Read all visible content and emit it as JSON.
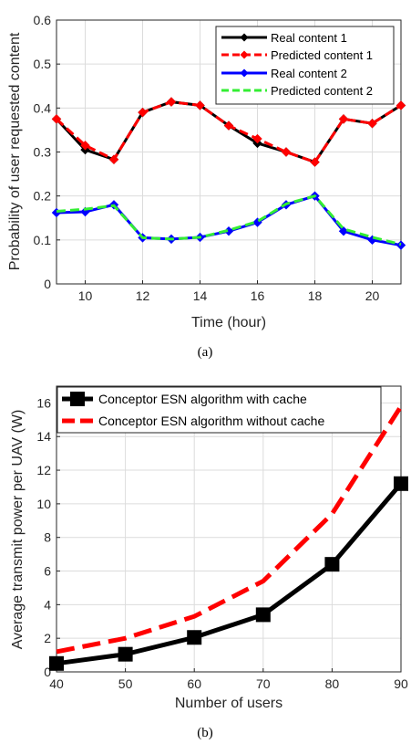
{
  "chart_data": [
    {
      "type": "line",
      "caption": "(a)",
      "xlabel": "Time (hour)",
      "ylabel": "Probability of user requested content",
      "xlim": [
        9,
        21
      ],
      "ylim": [
        0,
        0.6
      ],
      "xticks": [
        10,
        12,
        14,
        16,
        18,
        20
      ],
      "yticks": [
        0,
        0.1,
        0.2,
        0.3,
        0.4,
        0.5,
        0.6
      ],
      "ytick_labels": [
        "0",
        "0.1",
        "0.2",
        "0.3",
        "0.4",
        "0.5",
        "0.6"
      ],
      "grid": true,
      "legend_position": "top-right",
      "x": [
        9,
        10,
        11,
        12,
        13,
        14,
        15,
        16,
        17,
        18,
        19,
        20,
        21
      ],
      "series": [
        {
          "name": "Real content 1",
          "color": "#000000",
          "style": "solid",
          "marker": "diamond",
          "values": [
            0.375,
            0.305,
            0.283,
            0.39,
            0.414,
            0.406,
            0.36,
            0.32,
            0.3,
            0.277,
            0.375,
            0.365,
            0.406
          ]
        },
        {
          "name": "Predicted content 1",
          "color": "#ff0000",
          "style": "dashed",
          "marker": "diamond",
          "values": [
            0.375,
            0.315,
            0.283,
            0.39,
            0.414,
            0.406,
            0.36,
            0.33,
            0.3,
            0.277,
            0.375,
            0.365,
            0.406
          ]
        },
        {
          "name": "Real content 2",
          "color": "#0000ff",
          "style": "solid",
          "marker": "diamond",
          "values": [
            0.162,
            0.164,
            0.18,
            0.105,
            0.102,
            0.106,
            0.12,
            0.14,
            0.18,
            0.2,
            0.12,
            0.1,
            0.088
          ]
        },
        {
          "name": "Predicted content 2",
          "color": "#33ee33",
          "style": "dashed",
          "marker": "none",
          "values": [
            0.165,
            0.17,
            0.178,
            0.105,
            0.102,
            0.106,
            0.122,
            0.142,
            0.182,
            0.2,
            0.125,
            0.106,
            0.09
          ]
        }
      ]
    },
    {
      "type": "line",
      "caption": "(b)",
      "xlabel": "Number of users",
      "ylabel": "Average transmit power per UAV (W)",
      "xlim": [
        40,
        90
      ],
      "ylim": [
        0,
        17
      ],
      "xticks": [
        40,
        50,
        60,
        70,
        80,
        90
      ],
      "yticks": [
        0,
        2,
        4,
        6,
        8,
        10,
        12,
        14,
        16
      ],
      "grid": true,
      "legend_position": "top-left",
      "x": [
        40,
        50,
        60,
        70,
        80,
        90
      ],
      "series": [
        {
          "name": "Conceptor ESN algorithm with cache",
          "color": "#000000",
          "style": "solid",
          "marker": "square",
          "values": [
            0.5,
            1.05,
            2.05,
            3.4,
            6.4,
            11.2
          ]
        },
        {
          "name": "Conceptor ESN algorithm without cache",
          "color": "#ff0000",
          "style": "dashed",
          "marker": "none",
          "values": [
            1.2,
            2.0,
            3.3,
            5.4,
            9.4,
            15.8
          ]
        }
      ]
    }
  ]
}
